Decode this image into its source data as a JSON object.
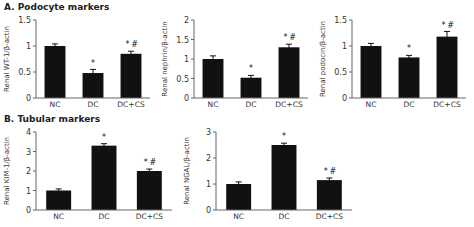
{
  "chart_data": [
    {
      "type": "bar",
      "title": "A. Podocyte markers",
      "ylabel": "Renal WT-1/β-actin",
      "categories": [
        "NC",
        "DC",
        "DC+CS"
      ],
      "values": [
        1.0,
        0.48,
        0.85
      ],
      "errors": [
        0.04,
        0.07,
        0.05
      ],
      "annotations": [
        null,
        "*",
        "*#"
      ],
      "color": "#111111",
      "ylim": [
        0,
        1.5
      ],
      "yticks": [
        0,
        0.5,
        1,
        1.5
      ]
    },
    {
      "type": "bar",
      "ylabel": "Renal nephrin/β-actin",
      "categories": [
        "NC",
        "DC",
        "DC+CS"
      ],
      "values": [
        1.0,
        0.52,
        1.3
      ],
      "errors": [
        0.08,
        0.06,
        0.08
      ],
      "annotations": [
        null,
        "*",
        "*#"
      ],
      "color": "#111111",
      "ylim": [
        0,
        2.0
      ],
      "yticks": [
        0,
        0.5,
        1,
        1.5,
        2
      ]
    },
    {
      "type": "bar",
      "ylabel": "Renal podocin/β-actin",
      "categories": [
        "NC",
        "DC",
        "DC+CS"
      ],
      "values": [
        1.0,
        0.78,
        1.18
      ],
      "errors": [
        0.05,
        0.04,
        0.1
      ],
      "annotations": [
        null,
        "*",
        "*#"
      ],
      "color": "#111111",
      "ylim": [
        0,
        1.5
      ],
      "yticks": [
        0,
        0.5,
        1,
        1.5
      ]
    },
    {
      "type": "bar",
      "title": "B. Tubular markers",
      "ylabel": "Renal KIM-1/β-actin",
      "categories": [
        "NC",
        "DC",
        "DC+CS"
      ],
      "values": [
        1.0,
        3.3,
        2.0
      ],
      "errors": [
        0.08,
        0.1,
        0.1
      ],
      "annotations": [
        null,
        "*",
        "*#"
      ],
      "color": "#111111",
      "ylim": [
        0,
        4
      ],
      "yticks": [
        0,
        1,
        2,
        3,
        4
      ]
    },
    {
      "type": "bar",
      "ylabel": "Renal NGAL/β-actin",
      "categories": [
        "NC",
        "DC",
        "DC+CS"
      ],
      "values": [
        1.0,
        2.5,
        1.15
      ],
      "errors": [
        0.08,
        0.07,
        0.08
      ],
      "annotations": [
        null,
        "*",
        "*#"
      ],
      "color": "#111111",
      "ylim": [
        0,
        3
      ],
      "yticks": [
        0,
        1,
        2,
        3
      ]
    }
  ]
}
